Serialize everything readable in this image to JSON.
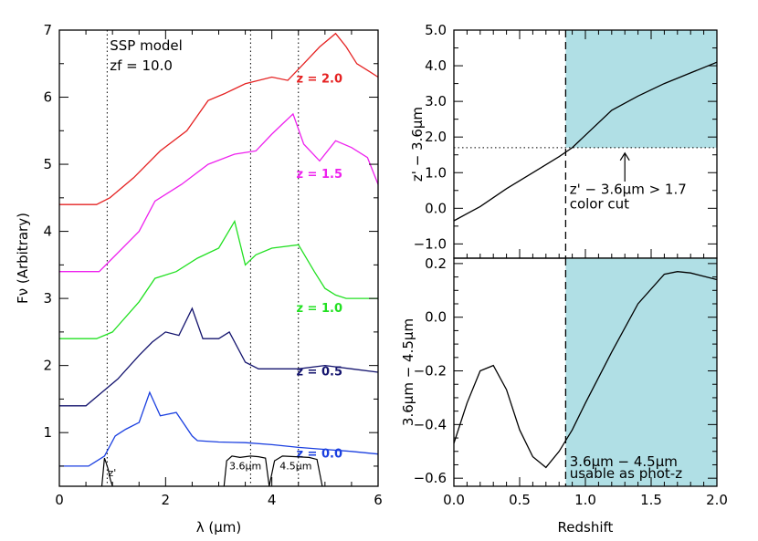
{
  "figure": {
    "colors": {
      "frame": "#000000",
      "shade": "#b0dfe5"
    }
  },
  "chart_data": [
    {
      "type": "line",
      "xlabel": "λ (μm)",
      "ylabel": "Fν (Arbitrary)",
      "xlim": [
        0,
        6
      ],
      "ylim": [
        0.2,
        7.0
      ],
      "xticks": [
        0,
        2,
        4,
        6
      ],
      "yticks": [
        1,
        2,
        3,
        4,
        5,
        6,
        7
      ],
      "annotations": {
        "model_line1": "SSP model",
        "model_line2": "zf = 10.0"
      },
      "filter_labels": [
        "z'",
        "3.6μm",
        "4.5μm"
      ],
      "band_positions": [
        0.9,
        3.6,
        4.5
      ],
      "series": [
        {
          "name": "z = 0.0",
          "color": "#1a3fe0",
          "x": [
            0,
            0.55,
            0.85,
            1.05,
            1.25,
            1.5,
            1.7,
            1.9,
            2.2,
            2.5,
            2.6,
            3.0,
            3.5,
            4.0,
            4.5,
            5.0,
            5.5,
            6.0
          ],
          "y": [
            0.5,
            0.5,
            0.65,
            0.95,
            1.05,
            1.15,
            1.6,
            1.25,
            1.3,
            0.95,
            0.88,
            0.86,
            0.85,
            0.82,
            0.78,
            0.75,
            0.72,
            0.68
          ]
        },
        {
          "name": "z = 0.5",
          "color": "#14146e",
          "x": [
            0,
            0.5,
            0.8,
            1.1,
            1.5,
            1.75,
            2.0,
            2.25,
            2.5,
            2.7,
            3.0,
            3.2,
            3.5,
            3.75,
            4.0,
            4.5,
            5.0,
            5.5,
            6.0
          ],
          "y": [
            1.4,
            1.4,
            1.6,
            1.8,
            2.15,
            2.35,
            2.5,
            2.45,
            2.85,
            2.4,
            2.4,
            2.5,
            2.05,
            1.95,
            1.95,
            1.95,
            2.0,
            1.95,
            1.9
          ]
        },
        {
          "name": "z = 1.0",
          "color": "#22e022",
          "x": [
            0,
            0.7,
            1.0,
            1.5,
            1.8,
            2.2,
            2.6,
            3.0,
            3.3,
            3.5,
            3.7,
            4.0,
            4.5,
            4.8,
            5.0,
            5.2,
            5.4,
            6.0
          ],
          "y": [
            2.4,
            2.4,
            2.5,
            2.95,
            3.3,
            3.4,
            3.6,
            3.75,
            4.15,
            3.5,
            3.65,
            3.75,
            3.8,
            3.4,
            3.15,
            3.05,
            3.0,
            3.0
          ]
        },
        {
          "name": "z = 1.5",
          "color": "#ee22ee",
          "x": [
            0,
            0.75,
            1.0,
            1.5,
            1.8,
            2.3,
            2.8,
            3.3,
            3.7,
            4.0,
            4.2,
            4.4,
            4.6,
            4.9,
            5.2,
            5.5,
            5.8,
            5.95,
            6.0
          ],
          "y": [
            3.4,
            3.4,
            3.6,
            4.0,
            4.45,
            4.7,
            5.0,
            5.15,
            5.2,
            5.45,
            5.6,
            5.75,
            5.3,
            5.05,
            5.35,
            5.25,
            5.1,
            4.8,
            4.7
          ]
        },
        {
          "name": "z = 2.0",
          "color": "#e52222",
          "x": [
            0,
            0.7,
            0.95,
            1.4,
            1.9,
            2.4,
            2.8,
            3.1,
            3.5,
            4.0,
            4.3,
            4.6,
            4.9,
            5.2,
            5.4,
            5.6,
            5.8,
            6.0
          ],
          "y": [
            4.4,
            4.4,
            4.5,
            4.8,
            5.2,
            5.5,
            5.95,
            6.05,
            6.2,
            6.3,
            6.25,
            6.5,
            6.75,
            6.95,
            6.75,
            6.5,
            6.4,
            6.3
          ]
        }
      ],
      "filters": [
        {
          "name": "z'",
          "x": [
            0.8,
            0.85,
            0.88,
            0.92,
            0.96,
            1.0
          ],
          "y": [
            0.2,
            0.62,
            0.55,
            0.45,
            0.3,
            0.2
          ]
        },
        {
          "name": "3.6μm",
          "x": [
            3.1,
            3.15,
            3.25,
            3.4,
            3.6,
            3.75,
            3.88,
            3.95
          ],
          "y": [
            0.2,
            0.58,
            0.65,
            0.63,
            0.65,
            0.64,
            0.62,
            0.2
          ]
        },
        {
          "name": "4.5μm",
          "x": [
            3.95,
            4.05,
            4.2,
            4.45,
            4.7,
            4.85,
            4.95
          ],
          "y": [
            0.2,
            0.58,
            0.65,
            0.64,
            0.63,
            0.6,
            0.2
          ]
        }
      ]
    },
    {
      "type": "line",
      "xlabel": "Redshift",
      "ylabel": "z' − 3.6μm",
      "xlim": [
        0,
        2
      ],
      "ylim": [
        -1.4,
        5.0
      ],
      "yticks": [
        -1.0,
        0.0,
        1.0,
        2.0,
        3.0,
        4.0,
        5.0
      ],
      "ytick_labels": [
        "−1.0",
        "0.0",
        "1.0",
        "2.0",
        "3.0",
        "4.0",
        "5.0"
      ],
      "shaded_region": {
        "x": [
          0.85,
          2.0
        ],
        "y_from": 1.7,
        "y_to": 5.0
      },
      "cut_level": 1.7,
      "vline": 0.85,
      "annotation": {
        "line1": "z' − 3.6μm > 1.7",
        "line2": "color cut",
        "arrow_x": 1.3
      },
      "series": [
        {
          "x": [
            0,
            0.2,
            0.4,
            0.6,
            0.8,
            0.9,
            1.0,
            1.2,
            1.4,
            1.6,
            1.8,
            2.0
          ],
          "y": [
            -0.35,
            0.05,
            0.55,
            1.0,
            1.45,
            1.7,
            2.05,
            2.75,
            3.15,
            3.5,
            3.8,
            4.1
          ]
        }
      ]
    },
    {
      "type": "line",
      "xlabel": "Redshift",
      "ylabel": "3.6μm − 4.5μm",
      "xlim": [
        0,
        2
      ],
      "ylim": [
        -0.63,
        0.22
      ],
      "xticks": [
        0.0,
        0.5,
        1.0,
        1.5,
        2.0
      ],
      "xtick_labels": [
        "0.0",
        "0.5",
        "1.0",
        "1.5",
        "2.0"
      ],
      "yticks": [
        -0.6,
        -0.4,
        -0.2,
        0.0,
        0.2
      ],
      "ytick_labels": [
        "−0.6",
        "−0.4",
        "−0.2",
        "0.0",
        "0.2"
      ],
      "shaded_region": {
        "x": [
          0.85,
          2.0
        ]
      },
      "vline": 0.85,
      "annotation": {
        "line1": "3.6μm − 4.5μm",
        "line2": "usable as phot-z"
      },
      "series": [
        {
          "x": [
            0,
            0.1,
            0.2,
            0.3,
            0.4,
            0.5,
            0.6,
            0.7,
            0.8,
            0.9,
            1.0,
            1.2,
            1.4,
            1.6,
            1.7,
            1.8,
            2.0
          ],
          "y": [
            -0.47,
            -0.32,
            -0.2,
            -0.18,
            -0.27,
            -0.42,
            -0.52,
            -0.56,
            -0.5,
            -0.42,
            -0.32,
            -0.13,
            0.05,
            0.16,
            0.17,
            0.165,
            0.14
          ]
        }
      ]
    }
  ]
}
